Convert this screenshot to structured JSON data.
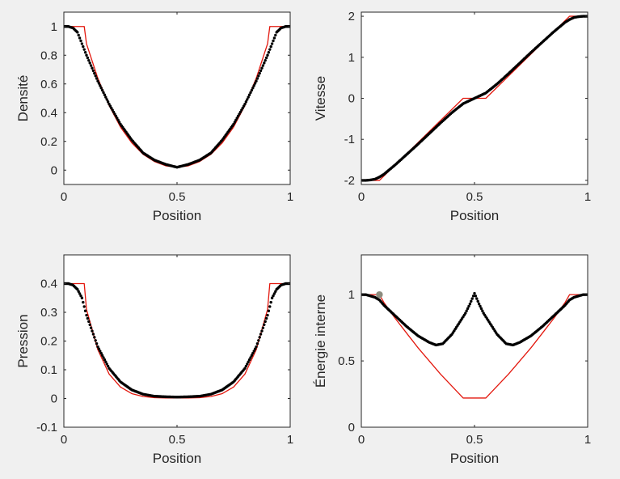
{
  "figure": {
    "background": "#f0f0f0"
  },
  "colors": {
    "exact": "#e3170d",
    "numeric": "#000000",
    "axis": "#262626",
    "marker": "#8c8c7e"
  },
  "chart_data": [
    {
      "type": "line",
      "xlabel": "Position",
      "ylabel": "Densité",
      "xlim": [
        0,
        1
      ],
      "ylim": [
        -0.1,
        1.1
      ],
      "xticks": [
        0,
        0.5,
        1
      ],
      "xtick_labels": [
        "0",
        "0.5",
        "1"
      ],
      "yticks": [
        0,
        0.2,
        0.4,
        0.6,
        0.8,
        1
      ],
      "ytick_labels": [
        "0",
        "0.2",
        "0.4",
        "0.6",
        "0.8",
        "1"
      ],
      "series": [
        {
          "style": "solid",
          "color": "#e3170d",
          "x": [
            0,
            0.08,
            0.09,
            0.1,
            0.15,
            0.2,
            0.25,
            0.3,
            0.35,
            0.4,
            0.45,
            0.5,
            0.55,
            0.6,
            0.65,
            0.7,
            0.75,
            0.8,
            0.85,
            0.9,
            0.91,
            0.92,
            1
          ],
          "y": [
            1,
            1,
            1,
            0.88,
            0.64,
            0.45,
            0.3,
            0.19,
            0.11,
            0.06,
            0.03,
            0.02,
            0.03,
            0.06,
            0.11,
            0.19,
            0.3,
            0.45,
            0.64,
            0.88,
            1,
            1,
            1
          ]
        },
        {
          "style": "dots",
          "color": "#000000",
          "x": [
            0,
            0.02,
            0.04,
            0.06,
            0.08,
            0.1,
            0.15,
            0.2,
            0.25,
            0.3,
            0.35,
            0.4,
            0.45,
            0.5,
            0.55,
            0.6,
            0.65,
            0.7,
            0.75,
            0.8,
            0.85,
            0.9,
            0.92,
            0.94,
            0.96,
            0.98,
            1
          ],
          "y": [
            1,
            1,
            0.99,
            0.96,
            0.88,
            0.8,
            0.62,
            0.46,
            0.32,
            0.21,
            0.12,
            0.07,
            0.04,
            0.02,
            0.04,
            0.07,
            0.12,
            0.21,
            0.32,
            0.46,
            0.62,
            0.8,
            0.88,
            0.96,
            0.99,
            1,
            1
          ]
        }
      ]
    },
    {
      "type": "line",
      "xlabel": "Position",
      "ylabel": "Vitesse",
      "xlim": [
        0,
        1
      ],
      "ylim": [
        -2.1,
        2.1
      ],
      "xticks": [
        0,
        0.5,
        1
      ],
      "xtick_labels": [
        "0",
        "0.5",
        "1"
      ],
      "yticks": [
        -2,
        -1,
        0,
        1,
        2
      ],
      "ytick_labels": [
        "-2",
        "-1",
        "0",
        "1",
        "2"
      ],
      "series": [
        {
          "style": "solid",
          "color": "#e3170d",
          "x": [
            0,
            0.08,
            0.45,
            0.55,
            0.92,
            1
          ],
          "y": [
            -2,
            -2,
            0,
            0,
            2,
            2
          ]
        },
        {
          "style": "dots",
          "color": "#000000",
          "x": [
            0,
            0.02,
            0.04,
            0.06,
            0.08,
            0.1,
            0.15,
            0.2,
            0.25,
            0.3,
            0.35,
            0.4,
            0.45,
            0.5,
            0.55,
            0.6,
            0.65,
            0.7,
            0.75,
            0.8,
            0.85,
            0.9,
            0.92,
            0.94,
            0.96,
            0.98,
            1
          ],
          "y": [
            -2,
            -2,
            -1.99,
            -1.97,
            -1.92,
            -1.85,
            -1.62,
            -1.37,
            -1.12,
            -0.86,
            -0.6,
            -0.35,
            -0.13,
            0,
            0.13,
            0.35,
            0.6,
            0.86,
            1.12,
            1.37,
            1.62,
            1.85,
            1.92,
            1.97,
            1.99,
            2,
            2
          ]
        }
      ]
    },
    {
      "type": "line",
      "xlabel": "Position",
      "ylabel": "Pression",
      "xlim": [
        0,
        1
      ],
      "ylim": [
        -0.1,
        0.5
      ],
      "xticks": [
        0,
        0.5,
        1
      ],
      "xtick_labels": [
        "0",
        "0.5",
        "1"
      ],
      "yticks": [
        -0.1,
        0,
        0.1,
        0.2,
        0.3,
        0.4
      ],
      "ytick_labels": [
        "-0.1",
        "0",
        "0.1",
        "0.2",
        "0.3",
        "0.4"
      ],
      "series": [
        {
          "style": "solid",
          "color": "#e3170d",
          "x": [
            0,
            0.08,
            0.09,
            0.1,
            0.15,
            0.2,
            0.25,
            0.3,
            0.35,
            0.4,
            0.45,
            0.5,
            0.55,
            0.6,
            0.65,
            0.7,
            0.75,
            0.8,
            0.85,
            0.9,
            0.91,
            0.92,
            1
          ],
          "y": [
            0.4,
            0.4,
            0.4,
            0.31,
            0.17,
            0.085,
            0.04,
            0.017,
            0.007,
            0.003,
            0.002,
            0.002,
            0.002,
            0.003,
            0.007,
            0.017,
            0.04,
            0.085,
            0.17,
            0.31,
            0.4,
            0.4,
            0.4
          ]
        },
        {
          "style": "dots",
          "color": "#000000",
          "x": [
            0,
            0.02,
            0.04,
            0.06,
            0.08,
            0.1,
            0.15,
            0.2,
            0.25,
            0.3,
            0.35,
            0.4,
            0.45,
            0.5,
            0.55,
            0.6,
            0.65,
            0.7,
            0.75,
            0.8,
            0.85,
            0.9,
            0.92,
            0.94,
            0.96,
            0.98,
            1
          ],
          "y": [
            0.4,
            0.4,
            0.395,
            0.38,
            0.35,
            0.29,
            0.18,
            0.105,
            0.058,
            0.03,
            0.015,
            0.008,
            0.006,
            0.005,
            0.006,
            0.008,
            0.015,
            0.03,
            0.058,
            0.105,
            0.18,
            0.29,
            0.35,
            0.38,
            0.395,
            0.4,
            0.4
          ]
        }
      ]
    },
    {
      "type": "line",
      "xlabel": "Position",
      "ylabel": "Énergie interne",
      "xlim": [
        0,
        1
      ],
      "ylim": [
        0,
        1.3
      ],
      "xticks": [
        0,
        0.5,
        1
      ],
      "xtick_labels": [
        "0",
        "0.5",
        "1"
      ],
      "yticks": [
        0,
        0.5,
        1
      ],
      "ytick_labels": [
        "0",
        "0.5",
        "1"
      ],
      "series": [
        {
          "style": "solid",
          "color": "#e3170d",
          "x": [
            0,
            0.08,
            0.1,
            0.15,
            0.2,
            0.25,
            0.3,
            0.35,
            0.4,
            0.45,
            0.55,
            0.6,
            0.65,
            0.7,
            0.75,
            0.8,
            0.85,
            0.9,
            0.92,
            1
          ],
          "y": [
            1,
            1,
            0.94,
            0.82,
            0.71,
            0.6,
            0.5,
            0.4,
            0.31,
            0.22,
            0.22,
            0.31,
            0.4,
            0.5,
            0.6,
            0.71,
            0.82,
            0.94,
            1,
            1
          ]
        },
        {
          "style": "dots",
          "color": "#000000",
          "x": [
            0,
            0.02,
            0.04,
            0.06,
            0.08,
            0.1,
            0.15,
            0.2,
            0.25,
            0.3,
            0.33,
            0.36,
            0.4,
            0.43,
            0.46,
            0.48,
            0.5,
            0.52,
            0.54,
            0.57,
            0.6,
            0.64,
            0.67,
            0.7,
            0.75,
            0.8,
            0.85,
            0.9,
            0.92,
            0.94,
            0.96,
            0.98,
            1
          ],
          "y": [
            1,
            1,
            0.99,
            0.98,
            0.96,
            0.92,
            0.84,
            0.76,
            0.69,
            0.64,
            0.62,
            0.63,
            0.7,
            0.78,
            0.86,
            0.93,
            1.01,
            0.93,
            0.86,
            0.78,
            0.7,
            0.63,
            0.62,
            0.64,
            0.69,
            0.76,
            0.84,
            0.92,
            0.96,
            0.98,
            0.99,
            1,
            1
          ]
        }
      ],
      "highlight_point": {
        "x": 0.08,
        "y": 1
      }
    }
  ]
}
